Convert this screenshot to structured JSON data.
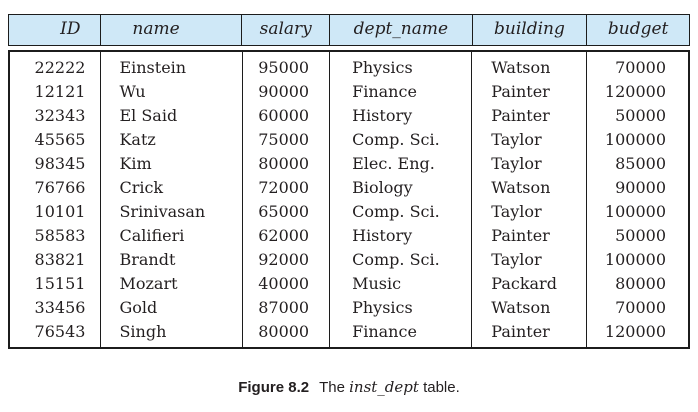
{
  "figure": {
    "colors": {
      "header_bg": "#cfe8f7",
      "border": "#1c1c1c",
      "text": "#231f20"
    },
    "table": {
      "columns": [
        {
          "key": "id",
          "label": "ID"
        },
        {
          "key": "name",
          "label": "name"
        },
        {
          "key": "salary",
          "label": "salary"
        },
        {
          "key": "dept_name",
          "label": "dept_name"
        },
        {
          "key": "building",
          "label": "building"
        },
        {
          "key": "budget",
          "label": "budget"
        }
      ],
      "rows": [
        [
          "22222",
          "Einstein",
          "95000",
          "Physics",
          "Watson",
          "70000"
        ],
        [
          "12121",
          "Wu",
          "90000",
          "Finance",
          "Painter",
          "120000"
        ],
        [
          "32343",
          "El Said",
          "60000",
          "History",
          "Painter",
          "50000"
        ],
        [
          "45565",
          "Katz",
          "75000",
          "Comp. Sci.",
          "Taylor",
          "100000"
        ],
        [
          "98345",
          "Kim",
          "80000",
          "Elec. Eng.",
          "Taylor",
          "85000"
        ],
        [
          "76766",
          "Crick",
          "72000",
          "Biology",
          "Watson",
          "90000"
        ],
        [
          "10101",
          "Srinivasan",
          "65000",
          "Comp. Sci.",
          "Taylor",
          "100000"
        ],
        [
          "58583",
          "Califieri",
          "62000",
          "History",
          "Painter",
          "50000"
        ],
        [
          "83821",
          "Brandt",
          "92000",
          "Comp. Sci.",
          "Taylor",
          "100000"
        ],
        [
          "15151",
          "Mozart",
          "40000",
          "Music",
          "Packard",
          "80000"
        ],
        [
          "33456",
          "Gold",
          "87000",
          "Physics",
          "Watson",
          "70000"
        ],
        [
          "76543",
          "Singh",
          "80000",
          "Finance",
          "Painter",
          "120000"
        ]
      ]
    },
    "caption": {
      "label": "Figure 8.2",
      "prefix": "The",
      "table_name": "inst_dept",
      "suffix": "table."
    }
  }
}
